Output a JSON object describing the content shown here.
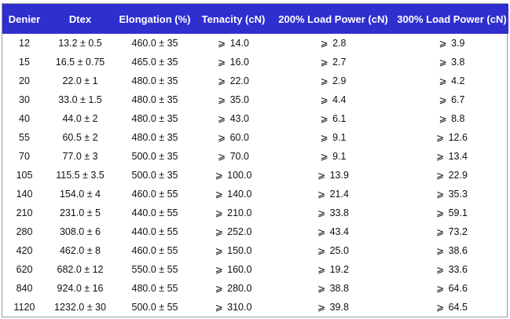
{
  "table": {
    "headers": [
      "Denier",
      "Dtex",
      "Elongation (%)",
      "Tenacity (cN)",
      "200% Load Power (cN)",
      "300% Load Power (cN)"
    ],
    "geq_symbol": "⩾",
    "rows": [
      {
        "denier": "12",
        "dtex": "13.2 ± 0.5",
        "elongation": "460.0 ± 35",
        "tenacity": "14.0",
        "load200": "2.8",
        "load300": "3.9"
      },
      {
        "denier": "15",
        "dtex": "16.5 ± 0.75",
        "elongation": "465.0 ± 35",
        "tenacity": "16.0",
        "load200": "2.7",
        "load300": "3.8"
      },
      {
        "denier": "20",
        "dtex": "22.0 ± 1",
        "elongation": "480.0 ± 35",
        "tenacity": "22.0",
        "load200": "2.9",
        "load300": "4.2"
      },
      {
        "denier": "30",
        "dtex": "33.0 ± 1.5",
        "elongation": "480.0 ± 35",
        "tenacity": "35.0",
        "load200": "4.4",
        "load300": "6.7"
      },
      {
        "denier": "40",
        "dtex": "44.0 ± 2",
        "elongation": "480.0 ± 35",
        "tenacity": "43.0",
        "load200": "6.1",
        "load300": "8.8"
      },
      {
        "denier": "55",
        "dtex": "60.5 ± 2",
        "elongation": "480.0 ± 35",
        "tenacity": "60.0",
        "load200": "9.1",
        "load300": "12.6"
      },
      {
        "denier": "70",
        "dtex": "77.0 ± 3",
        "elongation": "500.0 ± 35",
        "tenacity": "70.0",
        "load200": "9.1",
        "load300": "13.4"
      },
      {
        "denier": "105",
        "dtex": "115.5 ± 3.5",
        "elongation": "500.0 ± 35",
        "tenacity": "100.0",
        "load200": "13.9",
        "load300": "22.9"
      },
      {
        "denier": "140",
        "dtex": "154.0 ± 4",
        "elongation": "460.0 ± 55",
        "tenacity": "140.0",
        "load200": "21.4",
        "load300": "35.3"
      },
      {
        "denier": "210",
        "dtex": "231.0 ± 5",
        "elongation": "440.0 ± 55",
        "tenacity": "210.0",
        "load200": "33.8",
        "load300": "59.1"
      },
      {
        "denier": "280",
        "dtex": "308.0 ± 6",
        "elongation": "440.0 ± 55",
        "tenacity": "252.0",
        "load200": "43.4",
        "load300": "73.2"
      },
      {
        "denier": "420",
        "dtex": "462.0 ± 8",
        "elongation": "460.0 ± 55",
        "tenacity": "150.0",
        "load200": "25.0",
        "load300": "38.6"
      },
      {
        "denier": "620",
        "dtex": "682.0 ± 12",
        "elongation": "550.0 ± 55",
        "tenacity": "160.0",
        "load200": "19.2",
        "load300": "33.6"
      },
      {
        "denier": "840",
        "dtex": "924.0 ± 16",
        "elongation": "480.0 ± 55",
        "tenacity": "280.0",
        "load200": "38.8",
        "load300": "64.6"
      },
      {
        "denier": "1120",
        "dtex": "1232.0 ± 30",
        "elongation": "500.0 ± 55",
        "tenacity": "310.0",
        "load200": "39.8",
        "load300": "64.5"
      }
    ]
  }
}
